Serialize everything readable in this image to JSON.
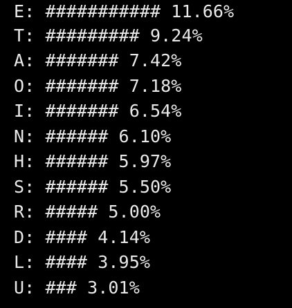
{
  "terminal": {
    "background": "#000000",
    "foreground": "#eaeaea",
    "lines": [
      {
        "letter": "E",
        "bar": "###########",
        "percent": "11.66%"
      },
      {
        "letter": "T",
        "bar": "#########",
        "percent": "9.24%"
      },
      {
        "letter": "A",
        "bar": "#######",
        "percent": "7.42%"
      },
      {
        "letter": "O",
        "bar": "#######",
        "percent": "7.18%"
      },
      {
        "letter": "I",
        "bar": "#######",
        "percent": "6.54%"
      },
      {
        "letter": "N",
        "bar": "######",
        "percent": "6.10%"
      },
      {
        "letter": "H",
        "bar": "######",
        "percent": "5.97%"
      },
      {
        "letter": "S",
        "bar": "######",
        "percent": "5.50%"
      },
      {
        "letter": "R",
        "bar": "#####",
        "percent": "5.00%"
      },
      {
        "letter": "D",
        "bar": "####",
        "percent": "4.14%"
      },
      {
        "letter": "L",
        "bar": "####",
        "percent": "3.95%"
      },
      {
        "letter": "U",
        "bar": "###",
        "percent": "3.01%"
      }
    ]
  }
}
